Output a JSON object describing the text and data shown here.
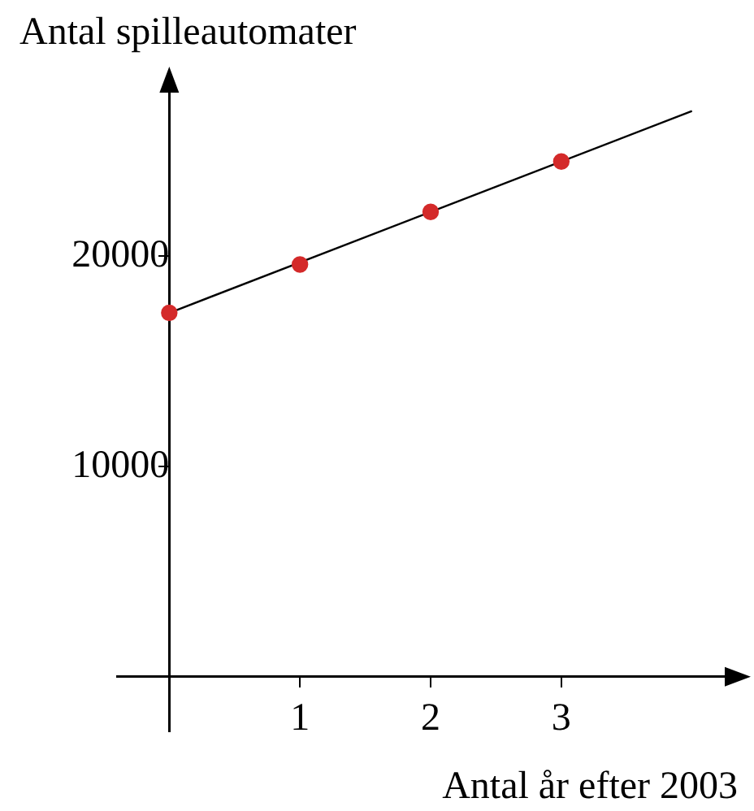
{
  "chart_data": {
    "type": "scatter",
    "xlabel": "Antal år efter 2003",
    "ylabel": "Antal spilleautomater",
    "xlim": [
      -0.4,
      4.4
    ],
    "ylim": [
      -2600,
      28700
    ],
    "xticks": [
      1,
      2,
      3
    ],
    "yticks": [
      10000,
      20000
    ],
    "grid": false,
    "marker": "circle",
    "series": [
      {
        "color": "#d42a2a",
        "x": [
          0,
          1,
          2,
          3
        ],
        "values": [
          17300,
          19600,
          22100,
          24500
        ]
      },
      {
        "type": "line",
        "color": "#000000",
        "x": [
          0,
          4
        ],
        "values": [
          17300,
          26900
        ],
        "marker": "none"
      }
    ]
  }
}
